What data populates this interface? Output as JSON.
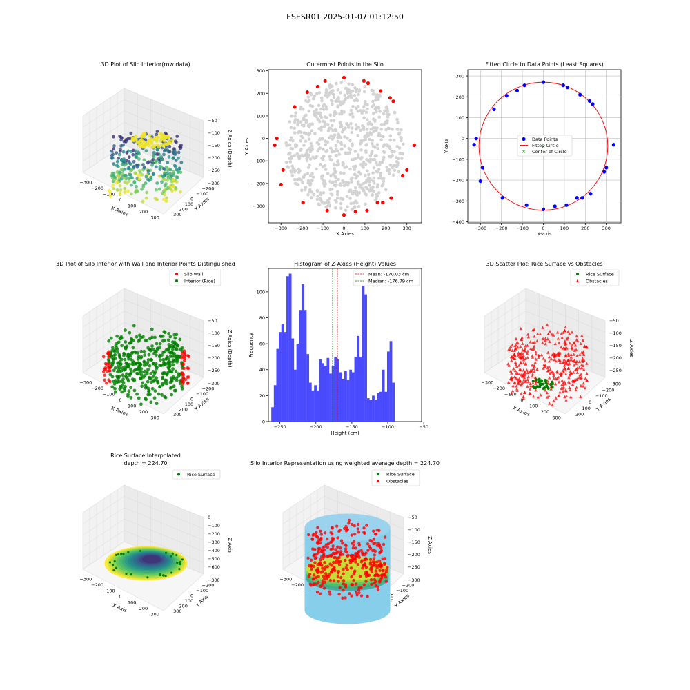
{
  "figure": {
    "suptitle": "ESESR01 2025-01-07 01:12:50"
  },
  "colors": {
    "wall": "#ff0000",
    "interior": "#008000",
    "outer": "#ff0000",
    "inner": "#d3d3d3",
    "hist": "#4a4aff",
    "mean_line": "#ff0000",
    "median_line": "#008000",
    "fit_points": "#0000ff",
    "cylinder": "#87ceeb"
  },
  "chart_data": [
    {
      "id": "p1",
      "type": "scatter",
      "projection": "3d",
      "title": "3D Plot of Silo Interior(row data)",
      "xlabel": "X Axies",
      "ylabel": "Y Axies",
      "zlabel": "Z Axies (Depth)",
      "xticks": [
        "−300",
        "−200",
        "−100",
        "0",
        "100",
        "200",
        "300"
      ],
      "yticks": [
        "300",
        "200",
        "100",
        "0",
        "−100",
        "−200",
        "−300"
      ],
      "zticks": [
        "−50",
        "−100",
        "−150",
        "−200",
        "−250"
      ],
      "xlim": [
        -340,
        340
      ],
      "ylim": [
        -340,
        340
      ],
      "zlim": [
        -270,
        -50
      ],
      "colormap": "viridis"
    },
    {
      "id": "p2",
      "type": "scatter",
      "title": "Outermost Points in the Silo",
      "xlabel": "X Axies",
      "ylabel": "Y Axies",
      "xticks": [
        "−300",
        "−200",
        "−100",
        "0",
        "100",
        "200",
        "300"
      ],
      "yticks": [
        "300",
        "200",
        "100",
        "0",
        "−100",
        "−200",
        "−300"
      ],
      "xlim": [
        -360,
        370
      ],
      "ylim": [
        -375,
        305
      ],
      "outer_points": {
        "x": [
          -330,
          -320,
          -290,
          -300,
          -235,
          -175,
          -125,
          -90,
          0,
          95,
          115,
          175,
          220,
          235,
          335,
          300,
          280,
          225,
          185,
          160,
          110,
          55,
          0,
          -80,
          -195
        ],
        "y": [
          -30,
          0,
          -140,
          -205,
          140,
          205,
          230,
          255,
          270,
          255,
          245,
          210,
          180,
          165,
          -30,
          -140,
          -165,
          -265,
          -285,
          -285,
          -320,
          -325,
          -340,
          -320,
          -285
        ]
      }
    },
    {
      "id": "p3",
      "type": "scatter",
      "title": "Fitted Circle to Data Points (Least Squares)",
      "xlabel": "X-axis",
      "ylabel": "Y-axis",
      "xticks": [
        "−300",
        "−200",
        "−100",
        "0",
        "100",
        "200",
        "300"
      ],
      "yticks": [
        "300",
        "200",
        "100",
        "0",
        "−100",
        "−200",
        "−300",
        "−400"
      ],
      "xlim": [
        -360,
        370
      ],
      "ylim": [
        -405,
        330
      ],
      "legend": [
        "Data Points",
        "Fitted Circle",
        "Center of Circle"
      ],
      "legend_loc": "center",
      "points": {
        "x": [
          -330,
          -320,
          -290,
          -300,
          -235,
          -175,
          -125,
          -90,
          0,
          95,
          115,
          175,
          220,
          235,
          335,
          300,
          290,
          225,
          185,
          160,
          110,
          55,
          0,
          -80,
          -195
        ],
        "y": [
          -30,
          0,
          -140,
          -205,
          140,
          205,
          230,
          255,
          270,
          255,
          245,
          210,
          180,
          165,
          -30,
          -140,
          -160,
          -265,
          -285,
          -285,
          -320,
          -325,
          -340,
          -320,
          -285
        ]
      },
      "circle": {
        "cx": 0,
        "cy": -37,
        "r": 307
      }
    },
    {
      "id": "p4",
      "type": "scatter",
      "projection": "3d",
      "title": "3D Plot of Silo Interior with Wall and Interior Points Distinguished",
      "xlabel": "X Axies",
      "ylabel": "Y Axies",
      "zlabel": "Z Axies (Depth)",
      "xticks": [
        "−300",
        "−200",
        "−100",
        "0",
        "100",
        "200",
        "300"
      ],
      "yticks": [
        "300",
        "200",
        "100",
        "0",
        "−100",
        "−200",
        "−300"
      ],
      "zticks": [
        "−50",
        "−100",
        "−150",
        "−200",
        "−250"
      ],
      "legend": [
        "Silo Wall",
        "Interior (Rice)"
      ]
    },
    {
      "id": "p5",
      "type": "bar",
      "title": "Histogram of Z-Axies (Height) Values",
      "xlabel": "Height (cm)",
      "ylabel": "Frequency",
      "xticks": [
        "−250",
        "−200",
        "−150",
        "−100",
        "−50"
      ],
      "yticks": [
        "0",
        "20",
        "40",
        "60",
        "80",
        "100"
      ],
      "xlim": [
        -266,
        -53
      ],
      "ylim": [
        0,
        118
      ],
      "bin_start": -262,
      "bin_width": 3.5,
      "values": [
        11,
        28,
        56,
        69,
        75,
        69,
        112,
        114,
        64,
        40,
        60,
        86,
        106,
        86,
        52,
        30,
        24,
        28,
        24,
        48,
        45,
        43,
        49,
        37,
        43,
        50,
        48,
        38,
        33,
        39,
        32,
        40,
        38,
        50,
        66,
        50,
        107,
        98,
        18,
        17,
        20,
        17,
        22,
        23,
        40,
        23,
        54,
        62,
        30
      ],
      "mean": -170.03,
      "median": -176.79,
      "legend": [
        "Mean: -170.03 cm",
        "Median: -176.79 cm"
      ]
    },
    {
      "id": "p6",
      "type": "scatter",
      "projection": "3d",
      "title": "3D Scatter Plot: Rice Surface vs Obstacles",
      "xlabel": "X Axies",
      "ylabel": "Y Axies",
      "zlabel": "Z Axies",
      "xticks": [
        "−300",
        "−200",
        "−100",
        "0",
        "100",
        "200",
        "300"
      ],
      "yticks": [
        "200",
        "100",
        "0",
        "−100",
        "−200",
        "−300"
      ],
      "zticks": [
        "−50",
        "−100",
        "−150",
        "−200",
        "−250"
      ],
      "legend": [
        "Rice Surface",
        "Obstacles"
      ]
    },
    {
      "id": "p7",
      "type": "area",
      "projection": "3d",
      "title": "Rice Surface Interpolated",
      "subtitle": "depth = 224.70",
      "xlabel": "X Axis",
      "ylabel": "Y Axis",
      "zlabel": "Z Axis",
      "xticks": [
        "−300",
        "−200",
        "−100",
        "0",
        "100",
        "200",
        "300"
      ],
      "yticks": [
        "300",
        "200",
        "100",
        "0",
        "−100",
        "−200",
        "−300"
      ],
      "zticks": [
        "0",
        "−100",
        "−200",
        "−300",
        "−400",
        "−500",
        "−600"
      ],
      "legend": [
        "Rice Surface"
      ]
    },
    {
      "id": "p8",
      "type": "scatter",
      "projection": "3d",
      "title": "Silo Interior Representation using weighted average depth = 224.70",
      "xlabel": "X Axies",
      "ylabel": "Y Axies",
      "zlabel": "Z Axies",
      "xticks": [
        "−300",
        "−200",
        "−100",
        "0",
        "100",
        "200",
        "300"
      ],
      "yticks": [
        "300",
        "200",
        "100",
        "0",
        "−100",
        "−200",
        "−300"
      ],
      "zticks": [
        "−50",
        "−100",
        "−150",
        "−200",
        "−250"
      ],
      "legend": [
        "Rice Surface",
        "Obstacles"
      ]
    }
  ]
}
